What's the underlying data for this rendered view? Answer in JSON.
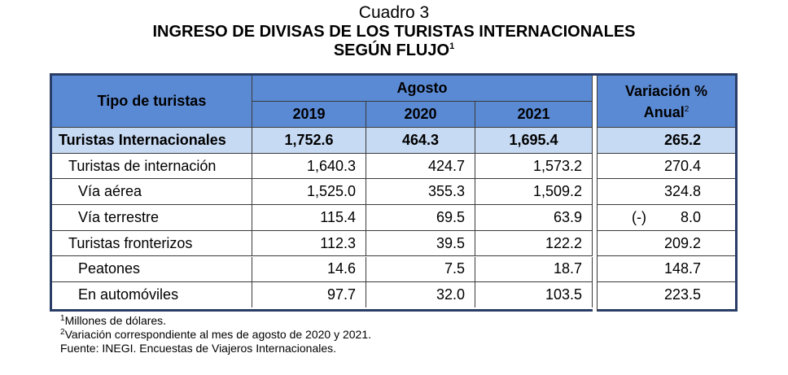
{
  "title": {
    "cuadro": "Cuadro 3",
    "line1": "INGRESO DE DIVISAS DE LOS TURISTAS INTERNACIONALES",
    "line2": "SEGÚN FLUJO",
    "line2_sup": "1"
  },
  "table": {
    "header": {
      "tipo": "Tipo de turistas",
      "agosto": "Agosto",
      "years": [
        "2019",
        "2020",
        "2021"
      ],
      "variacion_line1": "Variación %",
      "variacion_line2": "Anual",
      "variacion_sup": "2"
    },
    "rows": [
      {
        "label": "Turistas Internacionales",
        "v2019": "1,752.6",
        "v2020": "464.3",
        "v2021": "1,695.4",
        "variacion": "265.2",
        "neg": ""
      },
      {
        "label": "Turistas de internación",
        "v2019": "1,640.3",
        "v2020": "424.7",
        "v2021": "1,573.2",
        "variacion": "270.4",
        "neg": ""
      },
      {
        "label": "Vía aérea",
        "v2019": "1,525.0",
        "v2020": "355.3",
        "v2021": "1,509.2",
        "variacion": "324.8",
        "neg": ""
      },
      {
        "label": "Vía terrestre",
        "v2019": "115.4",
        "v2020": "69.5",
        "v2021": "63.9",
        "variacion": "8.0",
        "neg": "(-)"
      },
      {
        "label": "Turistas fronterizos",
        "v2019": "112.3",
        "v2020": "39.5",
        "v2021": "122.2",
        "variacion": "209.2",
        "neg": ""
      },
      {
        "label": "Peatones",
        "v2019": "14.6",
        "v2020": "7.5",
        "v2021": "18.7",
        "variacion": "148.7",
        "neg": ""
      },
      {
        "label": "En automóviles",
        "v2019": "97.7",
        "v2020": "32.0",
        "v2021": "103.5",
        "variacion": "223.5",
        "neg": ""
      }
    ]
  },
  "notes": [
    {
      "sup": "1",
      "text": "Millones de dólares."
    },
    {
      "sup": "2",
      "text": "Variación correspondiente al mes de agosto de 2020 y 2021."
    },
    {
      "sup": "",
      "text": "Fuente: INEGI. Encuestas de Viajeros Internacionales."
    }
  ]
}
